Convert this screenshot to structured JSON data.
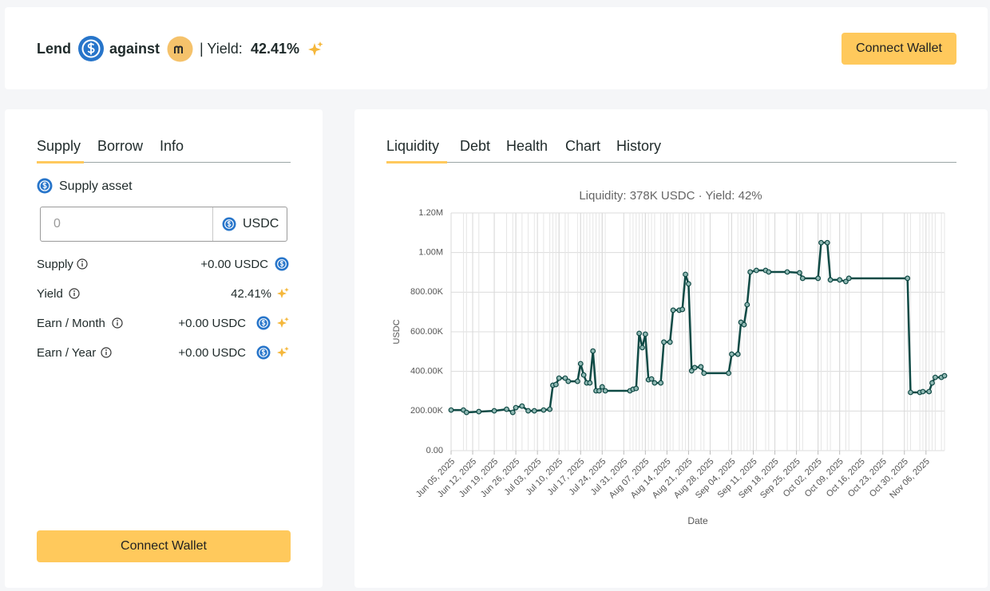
{
  "header": {
    "lend": "Lend",
    "against": "against",
    "yield_label": "| Yield:",
    "yield_value": "42.41%",
    "button": "Connect Wallet"
  },
  "supply_panel": {
    "tabs": [
      "Supply",
      "Borrow",
      "Info"
    ],
    "asset_label": "Supply asset",
    "input_placeholder": "0",
    "asset": "USDC",
    "rows": [
      {
        "label": "Supply",
        "value": "+0.00 USDC"
      },
      {
        "label": "Yield",
        "value": "42.41%"
      },
      {
        "label": "Earn / Month",
        "value": "+0.00 USDC"
      },
      {
        "label": "Earn / Year",
        "value": "+0.00 USDC"
      }
    ],
    "button": "Connect Wallet"
  },
  "main_panel": {
    "tabs": [
      "Liquidity",
      "Debt",
      "Health",
      "Chart",
      "History"
    ]
  },
  "chart_data": {
    "type": "line",
    "title": "Liquidity: 378K USDC · Yield: 42%",
    "x_label": "Date",
    "y_label": "USDC",
    "color": "#0f4a45",
    "grid": true,
    "x": [
      "2025-06-05",
      "2025-06-09",
      "2025-06-10",
      "2025-06-14",
      "2025-06-19",
      "2025-06-23",
      "2025-06-25",
      "2025-06-26",
      "2025-06-28",
      "2025-06-30",
      "2025-07-02",
      "2025-07-05",
      "2025-07-07",
      "2025-07-08",
      "2025-07-09",
      "2025-07-10",
      "2025-07-12",
      "2025-07-13",
      "2025-07-16",
      "2025-07-17",
      "2025-07-18",
      "2025-07-19",
      "2025-07-20",
      "2025-07-21",
      "2025-07-22",
      "2025-07-23",
      "2025-07-24",
      "2025-07-25",
      "2025-08-02",
      "2025-08-03",
      "2025-08-04",
      "2025-08-05",
      "2025-08-06",
      "2025-08-07",
      "2025-08-08",
      "2025-08-09",
      "2025-08-10",
      "2025-08-12",
      "2025-08-13",
      "2025-08-15",
      "2025-08-16",
      "2025-08-18",
      "2025-08-19",
      "2025-08-20",
      "2025-08-21",
      "2025-08-22",
      "2025-08-23",
      "2025-08-25",
      "2025-08-26",
      "2025-09-03",
      "2025-09-04",
      "2025-09-06",
      "2025-09-07",
      "2025-09-08",
      "2025-09-09",
      "2025-09-10",
      "2025-09-12",
      "2025-09-15",
      "2025-09-16",
      "2025-09-22",
      "2025-09-26",
      "2025-09-27",
      "2025-10-02",
      "2025-10-03",
      "2025-10-05",
      "2025-10-06",
      "2025-10-09",
      "2025-10-11",
      "2025-10-12",
      "2025-10-31",
      "2025-11-01",
      "2025-11-04",
      "2025-11-05",
      "2025-11-07",
      "2025-11-08",
      "2025-11-09",
      "2025-11-11",
      "2025-11-12"
    ],
    "values": [
      205000,
      205000,
      193000,
      197000,
      201000,
      209000,
      193000,
      217000,
      225000,
      201000,
      201000,
      205000,
      209000,
      330000,
      334000,
      366000,
      366000,
      350000,
      350000,
      439000,
      382000,
      342000,
      342000,
      503000,
      302000,
      302000,
      322000,
      302000,
      302000,
      310000,
      314000,
      592000,
      520000,
      588000,
      358000,
      362000,
      342000,
      342000,
      548000,
      548000,
      709000,
      709000,
      713000,
      890000,
      842000,
      403000,
      419000,
      423000,
      391000,
      391000,
      487000,
      487000,
      648000,
      636000,
      737000,
      902000,
      910000,
      910000,
      902000,
      902000,
      898000,
      870000,
      870000,
      1050000,
      1050000,
      862000,
      862000,
      854000,
      870000,
      870000,
      294000,
      294000,
      298000,
      298000,
      342000,
      370000,
      370000,
      378000
    ],
    "xlim": [
      "2025-06-05",
      "2025-11-12"
    ],
    "xticks": [
      {
        "value": "2025-06-05",
        "label": "Jun 05, 2025"
      },
      {
        "value": "2025-06-12",
        "label": "Jun 12, 2025"
      },
      {
        "value": "2025-06-19",
        "label": "Jun 19, 2025"
      },
      {
        "value": "2025-06-26",
        "label": "Jun 26, 2025"
      },
      {
        "value": "2025-07-03",
        "label": "Jul 03, 2025"
      },
      {
        "value": "2025-07-10",
        "label": "Jul 10, 2025"
      },
      {
        "value": "2025-07-17",
        "label": "Jul 17, 2025"
      },
      {
        "value": "2025-07-24",
        "label": "Jul 24, 2025"
      },
      {
        "value": "2025-07-31",
        "label": "Jul 31, 2025"
      },
      {
        "value": "2025-08-07",
        "label": "Aug 07, 2025"
      },
      {
        "value": "2025-08-14",
        "label": "Aug 14, 2025"
      },
      {
        "value": "2025-08-21",
        "label": "Aug 21, 2025"
      },
      {
        "value": "2025-08-28",
        "label": "Aug 28, 2025"
      },
      {
        "value": "2025-09-04",
        "label": "Sep 04, 2025"
      },
      {
        "value": "2025-09-11",
        "label": "Sep 11, 2025"
      },
      {
        "value": "2025-09-18",
        "label": "Sep 18, 2025"
      },
      {
        "value": "2025-09-25",
        "label": "Sep 25, 2025"
      },
      {
        "value": "2025-10-02",
        "label": "Oct 02, 2025"
      },
      {
        "value": "2025-10-09",
        "label": "Oct 09, 2025"
      },
      {
        "value": "2025-10-16",
        "label": "Oct 16, 2025"
      },
      {
        "value": "2025-10-23",
        "label": "Oct 23, 2025"
      },
      {
        "value": "2025-10-30",
        "label": "Oct 30, 2025"
      },
      {
        "value": "2025-11-06",
        "label": "Nov 06, 2025"
      }
    ],
    "ylim": [
      0,
      1200000
    ],
    "yticks": [
      {
        "value": 0,
        "label": "0.00"
      },
      {
        "value": 200000,
        "label": "200.00K"
      },
      {
        "value": 400000,
        "label": "400.00K"
      },
      {
        "value": 600000,
        "label": "600.00K"
      },
      {
        "value": 800000,
        "label": "800.00K"
      },
      {
        "value": 1000000,
        "label": "1.00M"
      },
      {
        "value": 1200000,
        "label": "1.20M"
      }
    ]
  }
}
